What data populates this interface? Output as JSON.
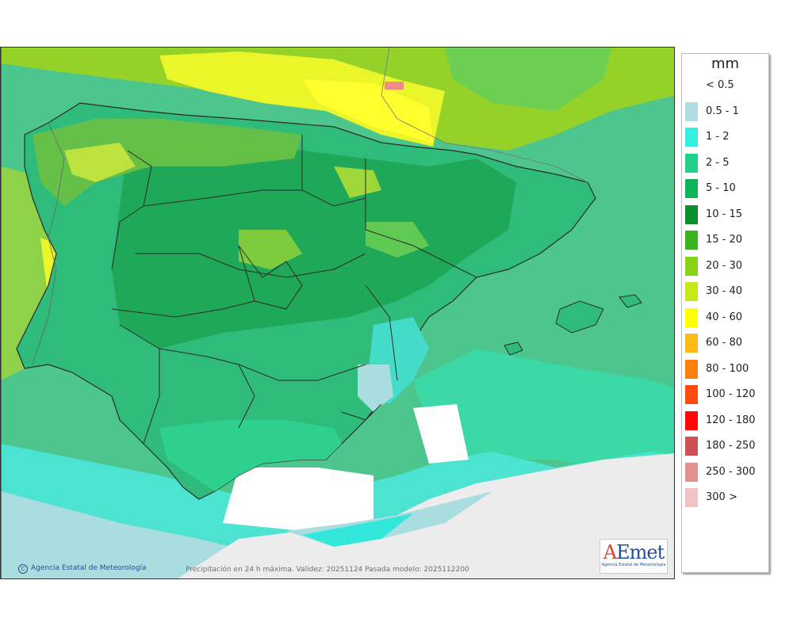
{
  "map": {
    "copyright": "Agencia Estatal de Meteorología",
    "caption": "Precipitación en 24 h máxima. Validez: 20251124 Pasada modelo: 2025112200",
    "logo_text": "AEmet",
    "logo_subtitle": "Agencia Estatal de Meteorología"
  },
  "legend": {
    "unit": "mm",
    "items": [
      {
        "label": "< 0.5",
        "color": "#ffffff"
      },
      {
        "label": "0.5 - 1",
        "color": "#b0dde3"
      },
      {
        "label": "1 - 2",
        "color": "#33f0e0"
      },
      {
        "label": "2 - 5",
        "color": "#22d089"
      },
      {
        "label": "5 - 10",
        "color": "#0db55a"
      },
      {
        "label": "10 - 15",
        "color": "#0a8f2c"
      },
      {
        "label": "15 - 20",
        "color": "#3cb31c"
      },
      {
        "label": "20 - 30",
        "color": "#8ad11a"
      },
      {
        "label": "30 - 40",
        "color": "#c8e81c"
      },
      {
        "label": "40 - 60",
        "color": "#ffff00"
      },
      {
        "label": "60 - 80",
        "color": "#ffbb15"
      },
      {
        "label": "80 - 100",
        "color": "#ff7f0e"
      },
      {
        "label": "100 - 120",
        "color": "#ff4b12"
      },
      {
        "label": "120 - 180",
        "color": "#ff0a0a"
      },
      {
        "label": "180 - 250",
        "color": "#cd5254"
      },
      {
        "label": "250 - 300",
        "color": "#e28f8f"
      },
      {
        "label": "300 >",
        "color": "#f2c3c3"
      }
    ]
  }
}
